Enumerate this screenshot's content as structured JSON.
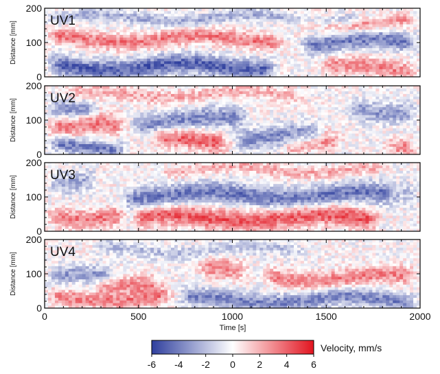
{
  "chart_data": {
    "type": "heatmap",
    "panels": [
      {
        "name": "UV1",
        "bands": [
          {
            "center": 172,
            "width": 16,
            "amp": -2.5,
            "t0": 0,
            "t1": 1700
          },
          {
            "center": 110,
            "width": 22,
            "amp": 3.4,
            "t0": 0,
            "t1": 1300
          },
          {
            "center": 30,
            "width": 28,
            "amp": -4.8,
            "t0": 0,
            "t1": 1250
          },
          {
            "center": 100,
            "width": 26,
            "amp": -4.0,
            "t0": 1350,
            "t1": 2000
          },
          {
            "center": 160,
            "width": 18,
            "amp": 2.5,
            "t0": 1300,
            "t1": 2000
          },
          {
            "center": 25,
            "width": 25,
            "amp": 3.0,
            "t0": 1450,
            "t1": 2000
          }
        ]
      },
      {
        "name": "UV2",
        "bands": [
          {
            "center": 175,
            "width": 20,
            "amp": 2.0,
            "t0": 100,
            "t1": 1400
          },
          {
            "center": 140,
            "width": 25,
            "amp": -3.5,
            "t0": 0,
            "t1": 300
          },
          {
            "center": 80,
            "width": 28,
            "amp": 3.5,
            "t0": 0,
            "t1": 450
          },
          {
            "center": 100,
            "width": 30,
            "amp": -3.6,
            "t0": 450,
            "t1": 1100
          },
          {
            "center": 25,
            "width": 22,
            "amp": -4.0,
            "t0": 0,
            "t1": 450
          },
          {
            "center": 40,
            "width": 28,
            "amp": 4.0,
            "t0": 550,
            "t1": 1000
          },
          {
            "center": 50,
            "width": 30,
            "amp": -3.5,
            "t0": 1000,
            "t1": 1500
          },
          {
            "center": 30,
            "width": 25,
            "amp": 3.0,
            "t0": 1250,
            "t1": 1600
          },
          {
            "center": 130,
            "width": 30,
            "amp": -3.0,
            "t0": 1600,
            "t1": 2000
          },
          {
            "center": 30,
            "width": 25,
            "amp": 3.0,
            "t0": 1800,
            "t1": 2000
          }
        ]
      },
      {
        "name": "UV3",
        "bands": [
          {
            "center": 180,
            "width": 18,
            "amp": 2.0,
            "t0": 600,
            "t1": 1850
          },
          {
            "center": 105,
            "width": 30,
            "amp": -4.2,
            "t0": 400,
            "t1": 1900
          },
          {
            "center": 40,
            "width": 30,
            "amp": 4.2,
            "t0": 450,
            "t1": 1800
          },
          {
            "center": 45,
            "width": 25,
            "amp": 3.5,
            "t0": 0,
            "t1": 450
          },
          {
            "center": 150,
            "width": 30,
            "amp": -2.5,
            "t0": 0,
            "t1": 300
          },
          {
            "center": 120,
            "width": 30,
            "amp": -2.5,
            "t0": 1850,
            "t1": 2000
          }
        ]
      },
      {
        "name": "UV4",
        "bands": [
          {
            "center": 170,
            "width": 20,
            "amp": -1.8,
            "t0": 250,
            "t1": 1400
          },
          {
            "center": 90,
            "width": 25,
            "amp": -3.0,
            "t0": 0,
            "t1": 400
          },
          {
            "center": 30,
            "width": 22,
            "amp": 3.2,
            "t0": 0,
            "t1": 700
          },
          {
            "center": 60,
            "width": 25,
            "amp": 3.0,
            "t0": 250,
            "t1": 650
          },
          {
            "center": 110,
            "width": 30,
            "amp": 3.0,
            "t0": 800,
            "t1": 1100
          },
          {
            "center": 25,
            "width": 25,
            "amp": -3.8,
            "t0": 700,
            "t1": 2000
          },
          {
            "center": 90,
            "width": 25,
            "amp": 3.2,
            "t0": 1150,
            "t1": 2000
          }
        ]
      }
    ],
    "x_ticks": [
      0,
      500,
      1000,
      1500,
      2000
    ],
    "y_ticks": [
      0,
      100,
      200
    ],
    "xlim": [
      0,
      2000
    ],
    "ylim": [
      0,
      200
    ],
    "xlabel": "Time [s]",
    "ylabel": "Distance [mm]",
    "colorbar": {
      "label": "Velocity, mm/s",
      "ticks": [
        -6,
        -4,
        -2,
        0,
        2,
        4,
        6
      ],
      "range": [
        -6,
        6
      ],
      "colors": {
        "negative": "#2f3f9e",
        "zero": "#ffffff",
        "positive": "#e2141f"
      }
    },
    "grid": false
  }
}
